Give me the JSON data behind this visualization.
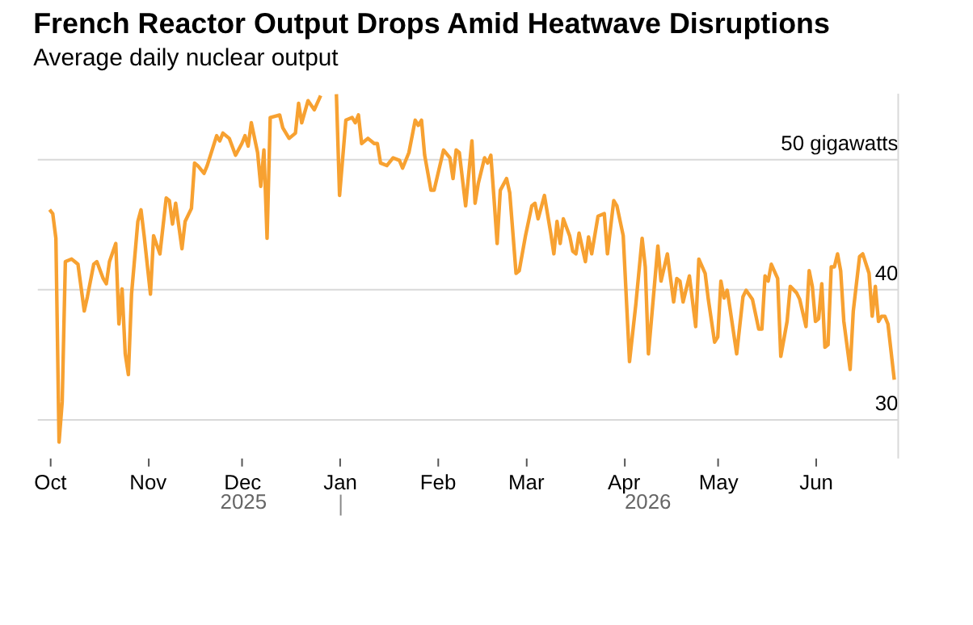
{
  "chart_data": {
    "type": "line",
    "title": "French Reactor Output Drops Amid Heatwave Disruptions",
    "subtitle": "Average daily nuclear output",
    "x": [
      "2025-10-01",
      "2025-10-02",
      "2025-10-03",
      "2025-10-04",
      "2025-10-05",
      "2025-10-06",
      "2025-10-08",
      "2025-10-09",
      "2025-10-10",
      "2025-10-12",
      "2025-10-13",
      "2025-10-15",
      "2025-10-16",
      "2025-10-18",
      "2025-10-19",
      "2025-10-20",
      "2025-10-22",
      "2025-10-23",
      "2025-10-24",
      "2025-10-25",
      "2025-10-26",
      "2025-10-27",
      "2025-10-29",
      "2025-10-30",
      "2025-10-31",
      "2025-11-02",
      "2025-11-03",
      "2025-11-05",
      "2025-11-07",
      "2025-11-08",
      "2025-11-09",
      "2025-11-10",
      "2025-11-12",
      "2025-11-13",
      "2025-11-15",
      "2025-11-16",
      "2025-11-17",
      "2025-11-19",
      "2025-11-20",
      "2025-11-23",
      "2025-11-24",
      "2025-11-25",
      "2025-11-27",
      "2025-11-29",
      "2025-12-01",
      "2025-12-02",
      "2025-12-03",
      "2025-12-04",
      "2025-12-06",
      "2025-12-07",
      "2025-12-08",
      "2025-12-09",
      "2025-12-10",
      "2025-12-13",
      "2025-12-14",
      "2025-12-16",
      "2025-12-18",
      "2025-12-19",
      "2025-12-20",
      "2025-12-22",
      "2025-12-24",
      "2025-12-26",
      "2025-12-28",
      "2025-12-30",
      "2025-12-31",
      "2026-01-01",
      "2026-01-03",
      "2026-01-05",
      "2026-01-06",
      "2026-01-07",
      "2026-01-08",
      "2026-01-10",
      "2026-01-12",
      "2026-01-13",
      "2026-01-14",
      "2026-01-16",
      "2026-01-18",
      "2026-01-20",
      "2026-01-21",
      "2026-01-23",
      "2026-01-25",
      "2026-01-26",
      "2026-01-27",
      "2026-01-28",
      "2026-01-30",
      "2026-01-31",
      "2026-02-03",
      "2026-02-05",
      "2026-02-06",
      "2026-02-07",
      "2026-02-08",
      "2026-02-10",
      "2026-02-12",
      "2026-02-13",
      "2026-02-14",
      "2026-02-16",
      "2026-02-17",
      "2026-02-18",
      "2026-02-19",
      "2026-02-20",
      "2026-02-21",
      "2026-02-23",
      "2026-02-24",
      "2026-02-26",
      "2026-02-27",
      "2026-03-01",
      "2026-03-03",
      "2026-03-04",
      "2026-03-05",
      "2026-03-07",
      "2026-03-09",
      "2026-03-10",
      "2026-03-11",
      "2026-03-12",
      "2026-03-13",
      "2026-03-15",
      "2026-03-16",
      "2026-03-17",
      "2026-03-18",
      "2026-03-20",
      "2026-03-21",
      "2026-03-22",
      "2026-03-24",
      "2026-03-26",
      "2026-03-27",
      "2026-03-29",
      "2026-03-30",
      "2026-04-01",
      "2026-04-03",
      "2026-04-05",
      "2026-04-07",
      "2026-04-08",
      "2026-04-09",
      "2026-04-12",
      "2026-04-13",
      "2026-04-15",
      "2026-04-17",
      "2026-04-18",
      "2026-04-19",
      "2026-04-20",
      "2026-04-22",
      "2026-04-24",
      "2026-04-25",
      "2026-04-27",
      "2026-04-28",
      "2026-04-30",
      "2026-05-01",
      "2026-05-02",
      "2026-05-03",
      "2026-05-04",
      "2026-05-05",
      "2026-05-07",
      "2026-05-09",
      "2026-05-10",
      "2026-05-12",
      "2026-05-14",
      "2026-05-15",
      "2026-05-16",
      "2026-05-17",
      "2026-05-18",
      "2026-05-20",
      "2026-05-21",
      "2026-05-23",
      "2026-05-24",
      "2026-05-26",
      "2026-05-27",
      "2026-05-29",
      "2026-05-30",
      "2026-05-31",
      "2026-06-01",
      "2026-06-02",
      "2026-06-03",
      "2026-06-04",
      "2026-06-05",
      "2026-06-06",
      "2026-06-07",
      "2026-06-08",
      "2026-06-09",
      "2026-06-10",
      "2026-06-12",
      "2026-06-13",
      "2026-06-15",
      "2026-06-16",
      "2026-06-18",
      "2026-06-19",
      "2026-06-20",
      "2026-06-21",
      "2026-06-22",
      "2026-06-23",
      "2026-06-24",
      "2026-06-26"
    ],
    "series": [
      {
        "color": "#f7a131",
        "values": [
          46.1,
          45.8,
          43.9,
          28.2,
          31.3,
          42.1,
          42.3,
          42.1,
          41.9,
          38.3,
          39.4,
          41.9,
          42.1,
          40.8,
          40.4,
          42.1,
          43.5,
          37.3,
          40.0,
          35.0,
          33.4,
          39.6,
          45.2,
          46.1,
          44.1,
          39.6,
          44.1,
          42.7,
          47.0,
          46.8,
          45.0,
          46.6,
          43.1,
          45.2,
          46.2,
          49.7,
          49.5,
          48.9,
          49.5,
          51.8,
          51.4,
          52.0,
          51.6,
          50.3,
          51.2,
          51.8,
          51.0,
          52.8,
          50.5,
          47.9,
          50.7,
          43.9,
          53.2,
          53.4,
          52.4,
          51.6,
          52.0,
          54.3,
          52.8,
          54.5,
          53.8,
          54.9,
          null,
          null,
          55.0,
          47.2,
          53.0,
          53.2,
          52.8,
          53.4,
          51.2,
          51.6,
          51.2,
          51.2,
          49.7,
          49.5,
          50.1,
          49.9,
          49.3,
          50.5,
          53.0,
          52.6,
          53.0,
          50.3,
          47.6,
          47.6,
          50.7,
          50.1,
          48.5,
          50.7,
          50.5,
          46.4,
          51.4,
          46.6,
          48.1,
          50.1,
          49.7,
          50.3,
          47.0,
          43.5,
          47.6,
          48.5,
          47.4,
          41.2,
          41.4,
          44.1,
          46.4,
          46.6,
          45.4,
          47.2,
          44.3,
          42.7,
          45.2,
          43.5,
          45.4,
          44.1,
          42.9,
          42.7,
          44.3,
          42.1,
          44.0,
          42.7,
          45.6,
          45.8,
          42.7,
          46.8,
          46.4,
          44.1,
          34.4,
          38.8,
          43.9,
          41.7,
          35.0,
          43.3,
          40.6,
          42.7,
          39.0,
          40.8,
          40.6,
          39.0,
          41.0,
          37.1,
          42.3,
          41.2,
          39.2,
          35.9,
          36.3,
          40.6,
          39.3,
          39.9,
          38.3,
          35.0,
          39.4,
          39.9,
          39.2,
          36.9,
          36.9,
          41.0,
          40.6,
          41.9,
          40.8,
          34.8,
          37.5,
          40.2,
          39.7,
          39.2,
          37.1,
          41.4,
          40.2,
          37.5,
          37.7,
          40.4,
          35.5,
          35.7,
          41.7,
          41.7,
          42.7,
          41.4,
          37.5,
          33.8,
          38.3,
          42.5,
          42.7,
          41.2,
          37.9,
          40.2,
          37.5,
          37.9,
          37.9,
          37.3,
          33.0
        ]
      }
    ],
    "xlim": [
      "2025-09-27",
      "2026-06-27"
    ],
    "xticks": [
      {
        "value": "2025-10-01",
        "label": "Oct"
      },
      {
        "value": "2025-11-01",
        "label": "Nov"
      },
      {
        "value": "2025-12-01",
        "label": "Dec"
      },
      {
        "value": "2026-01-01",
        "label": "Jan"
      },
      {
        "value": "2026-02-01",
        "label": "Feb"
      },
      {
        "value": "2026-03-01",
        "label": "Mar"
      },
      {
        "value": "2026-04-01",
        "label": "Apr"
      },
      {
        "value": "2026-05-01",
        "label": "May"
      },
      {
        "value": "2026-06-01",
        "label": "Jun"
      }
    ],
    "yticks": [
      30,
      40,
      {
        "value": 50,
        "label": "50 gigawatts"
      }
    ],
    "ylim": [
      27,
      55.1
    ],
    "grid": "y",
    "annotations": [
      "2025",
      "2026"
    ]
  }
}
